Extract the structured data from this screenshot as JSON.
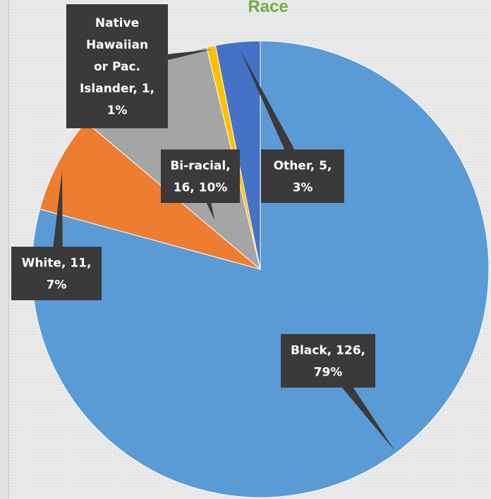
{
  "chart_data": {
    "type": "pie",
    "title": "Race",
    "slices": [
      {
        "name": "Black",
        "value": 126,
        "percent": "79%",
        "label_lines": [
          "Black, 126,",
          "79%"
        ],
        "color": "#5b9bd5"
      },
      {
        "name": "White",
        "value": 11,
        "percent": "7%",
        "label_lines": [
          "White, 11,",
          "7%"
        ],
        "color": "#ed7d31"
      },
      {
        "name": "Bi-racial",
        "value": 16,
        "percent": "10%",
        "label_lines": [
          "Bi-racial,",
          "16, 10%"
        ],
        "color": "#a5a5a5"
      },
      {
        "name": "Native Hawaiian or Pac. Islander",
        "value": 1,
        "percent": "1%",
        "label_lines": [
          "Native",
          "Hawaiian",
          "or Pac.",
          "Islander, 1,",
          "1%"
        ],
        "color": "#ffc000"
      },
      {
        "name": "Other",
        "value": 5,
        "percent": "3%",
        "label_lines": [
          "Other, 5,",
          "3%"
        ],
        "color": "#4472c4"
      }
    ],
    "legend": "none",
    "label_style": "data callouts"
  }
}
